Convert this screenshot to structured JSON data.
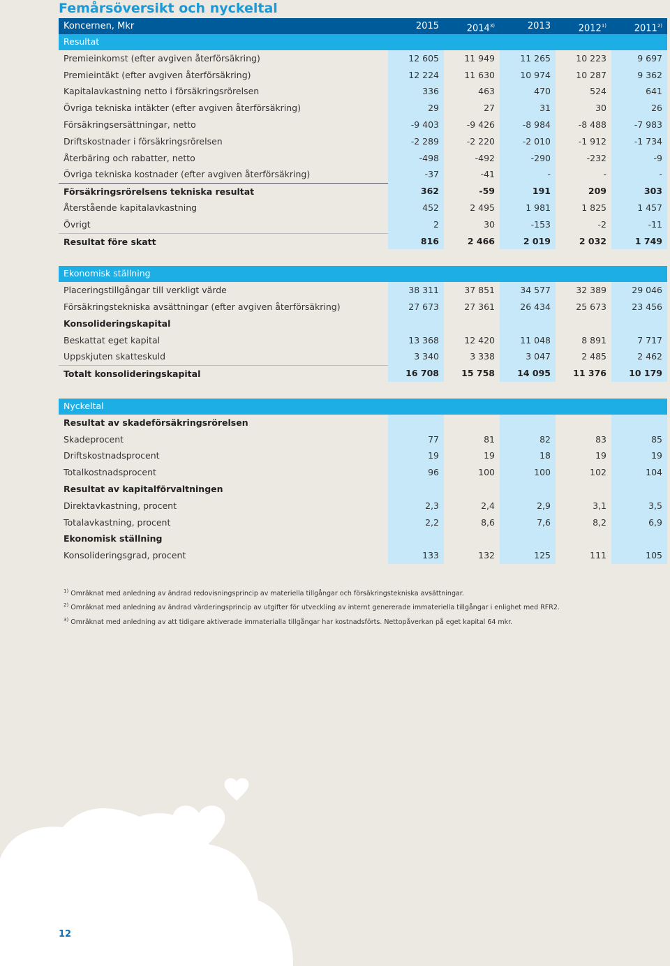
{
  "header": {
    "title": "Femårsöversikt och nyckeltal"
  },
  "table": {
    "label": "Koncernen, Mkr",
    "columns": [
      {
        "year": "2015"
      },
      {
        "year": "2014",
        "note": "3)"
      },
      {
        "year": "2013"
      },
      {
        "year": "2012",
        "note": "1)"
      },
      {
        "year": "2011",
        "note": "2)"
      }
    ],
    "sections": [
      {
        "title": "Resultat",
        "rows": [
          {
            "label": "Premieinkomst (efter avgiven återförsäkring)",
            "values": [
              "12 605",
              "11 949",
              "11 265",
              "10 223",
              "9 697"
            ]
          },
          {
            "label": "Premieintäkt (efter avgiven återförsäkring)",
            "values": [
              "12 224",
              "11 630",
              "10 974",
              "10 287",
              "9 362"
            ]
          },
          {
            "label": "Kapitalavkastning netto i försäkringsrörelsen",
            "values": [
              "336",
              "463",
              "470",
              "524",
              "641"
            ]
          },
          {
            "label": "Övriga tekniska intäkter (efter avgiven återförsäkring)",
            "values": [
              "29",
              "27",
              "31",
              "30",
              "26"
            ]
          },
          {
            "label": "Försäkringsersättningar, netto",
            "values": [
              "-9 403",
              "-9 426",
              "-8 984",
              "-8 488",
              "-7 983"
            ]
          },
          {
            "label": "Driftskostnader i försäkringsrörelsen",
            "values": [
              "-2 289",
              "-2 220",
              "-2 010",
              "-1 912",
              "-1 734"
            ]
          },
          {
            "label": "Återbäring och rabatter, netto",
            "values": [
              "-498",
              "-492",
              "-290",
              "-232",
              "-9"
            ]
          },
          {
            "label": "Övriga tekniska kostnader (efter avgiven återförsäkring)",
            "values": [
              "-37",
              "-41",
              "-",
              "-",
              "-"
            ]
          },
          {
            "label": "Försäkringsrörelsens tekniska resultat",
            "values": [
              "362",
              "-59",
              "191",
              "209",
              "303"
            ],
            "bold": true,
            "rule": "dark"
          },
          {
            "label": "Återstående kapitalavkastning",
            "values": [
              "452",
              "2 495",
              "1 981",
              "1 825",
              "1 457"
            ]
          },
          {
            "label": "Övrigt",
            "values": [
              "2",
              "30",
              "-153",
              "-2",
              "-11"
            ]
          },
          {
            "label": "Resultat före skatt",
            "values": [
              "816",
              "2 466",
              "2 019",
              "2 032",
              "1 749"
            ],
            "bold": true,
            "rule": "light"
          }
        ]
      },
      {
        "title": "Ekonomisk ställning",
        "rows": [
          {
            "label": "Placeringstillgångar till verkligt värde",
            "values": [
              "38 311",
              "37 851",
              "34 577",
              "32 389",
              "29 046"
            ]
          },
          {
            "label": "Försäkringstekniska avsättningar (efter avgiven återförsäkring)",
            "values": [
              "27 673",
              "27 361",
              "26 434",
              "25 673",
              "23 456"
            ]
          },
          {
            "label": "Konsolideringskapital",
            "bold": true
          },
          {
            "label": "Beskattat eget kapital",
            "values": [
              "13 368",
              "12 420",
              "11 048",
              "8 891",
              "7 717"
            ]
          },
          {
            "label": "Uppskjuten skatteskuld",
            "values": [
              "3 340",
              "3 338",
              "3 047",
              "2 485",
              "2 462"
            ]
          },
          {
            "label": "Totalt konsolideringskapital",
            "values": [
              "16 708",
              "15 758",
              "14 095",
              "11 376",
              "10 179"
            ],
            "bold": true,
            "rule": "light"
          }
        ]
      },
      {
        "title": "Nyckeltal",
        "rows": [
          {
            "label": "Resultat av skadeförsäkringsrörelsen",
            "bold": true
          },
          {
            "label": "Skadeprocent",
            "values": [
              "77",
              "81",
              "82",
              "83",
              "85"
            ]
          },
          {
            "label": "Driftskostnadsprocent",
            "values": [
              "19",
              "19",
              "18",
              "19",
              "19"
            ]
          },
          {
            "label": "Totalkostnadsprocent",
            "values": [
              "96",
              "100",
              "100",
              "102",
              "104"
            ]
          },
          {
            "label": "Resultat av kapitalförvaltningen",
            "bold": true
          },
          {
            "label": "Direktavkastning, procent",
            "values": [
              "2,3",
              "2,4",
              "2,9",
              "3,1",
              "3,5"
            ]
          },
          {
            "label": "Totalavkastning, procent",
            "values": [
              "2,2",
              "8,6",
              "7,6",
              "8,2",
              "6,9"
            ]
          },
          {
            "label": "Ekonomisk ställning",
            "bold": true
          },
          {
            "label": "Konsolideringsgrad, procent",
            "values": [
              "133",
              "132",
              "125",
              "111",
              "105"
            ]
          }
        ]
      }
    ]
  },
  "footnotes": [
    {
      "marker": "1)",
      "text": "Omräknat med anledning av ändrad redovisningsprincip av materiella tillgångar och försäkringstekniska avsättningar."
    },
    {
      "marker": "2)",
      "text": "Omräknat med anledning av ändrad värderingsprincip av utgifter för utveckling av internt genererade immateriella tillgångar i enlighet med RFR2."
    },
    {
      "marker": "3)",
      "text": "Omräknat med anledning av att tidigare aktiverade immaterialla tillgångar har kostnadsförts. Nettopåverkan på eget kapital 64 mkr."
    }
  ],
  "page_number": "12"
}
